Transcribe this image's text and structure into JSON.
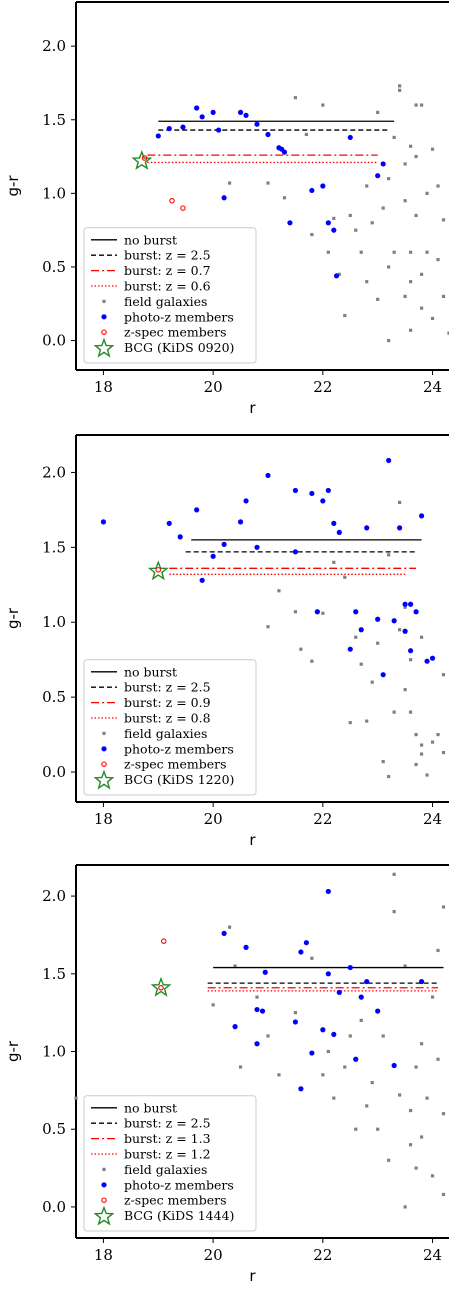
{
  "chart_data": [
    {
      "type": "scatter",
      "xlabel": "r",
      "ylabel": "g-r",
      "xlim": [
        17.5,
        24.3
      ],
      "ylim": [
        -0.2,
        2.3
      ],
      "xticks": [
        "18",
        "20",
        "22",
        "24"
      ],
      "yticks": [
        "0.0",
        "0.5",
        "1.0",
        "1.5",
        "2.0"
      ],
      "legend_position": "lower-left",
      "legend": {
        "no_burst": "no burst",
        "burst_a": "burst: z = 2.5",
        "burst_b": "burst: z = 0.7",
        "burst_c": "burst: z = 0.6",
        "field": "field galaxies",
        "photoz": "photo-z members",
        "zspec": "z-spec members",
        "bcg": "BCG (KiDS 0920)"
      },
      "lines": [
        {
          "name": "no burst",
          "color": "#000000",
          "style": "solid",
          "x": [
            19.0,
            23.3
          ],
          "y": 1.49
        },
        {
          "name": "burst: z = 2.5",
          "color": "#000000",
          "style": "dashed",
          "x": [
            19.0,
            23.2
          ],
          "y": 1.43
        },
        {
          "name": "burst: z = 0.7",
          "color": "#ff0000",
          "style": "dashdot",
          "x": [
            18.8,
            23.0
          ],
          "y": 1.26
        },
        {
          "name": "burst: z = 0.6",
          "color": "#ff0000",
          "style": "dotted",
          "x": [
            18.8,
            23.0
          ],
          "y": 1.21
        }
      ],
      "bcg": {
        "x": 18.7,
        "y": 1.22
      },
      "zspec": [
        [
          18.75,
          1.24
        ],
        [
          19.25,
          0.95
        ],
        [
          19.45,
          0.9
        ]
      ],
      "photoz": [
        [
          19.0,
          1.39
        ],
        [
          19.2,
          1.44
        ],
        [
          19.45,
          1.45
        ],
        [
          19.7,
          1.58
        ],
        [
          19.8,
          1.52
        ],
        [
          20.0,
          1.55
        ],
        [
          20.1,
          1.43
        ],
        [
          20.2,
          0.97
        ],
        [
          20.5,
          1.55
        ],
        [
          20.6,
          1.53
        ],
        [
          20.8,
          1.47
        ],
        [
          21.0,
          1.4
        ],
        [
          21.2,
          1.31
        ],
        [
          21.25,
          1.3
        ],
        [
          21.3,
          1.28
        ],
        [
          21.4,
          0.8
        ],
        [
          21.8,
          1.02
        ],
        [
          22.0,
          1.05
        ],
        [
          22.1,
          0.8
        ],
        [
          22.2,
          0.75
        ],
        [
          22.25,
          0.44
        ],
        [
          22.5,
          1.38
        ],
        [
          23.0,
          1.12
        ],
        [
          23.1,
          1.2
        ]
      ],
      "field": [
        [
          20.3,
          1.07
        ],
        [
          21.0,
          1.07
        ],
        [
          21.3,
          0.97
        ],
        [
          21.5,
          1.65
        ],
        [
          21.7,
          1.4
        ],
        [
          21.8,
          0.72
        ],
        [
          22.0,
          1.6
        ],
        [
          22.1,
          0.6
        ],
        [
          22.2,
          0.83
        ],
        [
          22.3,
          0.45
        ],
        [
          22.4,
          0.17
        ],
        [
          22.5,
          0.85
        ],
        [
          22.6,
          0.75
        ],
        [
          22.7,
          0.6
        ],
        [
          22.8,
          1.05
        ],
        [
          22.8,
          0.4
        ],
        [
          22.9,
          0.8
        ],
        [
          23.0,
          0.28
        ],
        [
          23.0,
          1.55
        ],
        [
          23.1,
          0.9
        ],
        [
          23.2,
          1.1
        ],
        [
          23.2,
          0.5
        ],
        [
          23.2,
          0.0
        ],
        [
          23.3,
          0.6
        ],
        [
          23.3,
          1.38
        ],
        [
          23.4,
          1.7
        ],
        [
          23.4,
          1.73
        ],
        [
          23.5,
          0.3
        ],
        [
          23.5,
          0.95
        ],
        [
          23.5,
          1.2
        ],
        [
          23.6,
          0.6
        ],
        [
          23.6,
          0.4
        ],
        [
          23.6,
          1.32
        ],
        [
          23.6,
          0.07
        ],
        [
          23.7,
          1.6
        ],
        [
          23.7,
          1.25
        ],
        [
          23.7,
          0.85
        ],
        [
          23.8,
          1.6
        ],
        [
          23.8,
          0.22
        ],
        [
          23.8,
          0.45
        ],
        [
          23.9,
          1.0
        ],
        [
          23.9,
          0.6
        ],
        [
          24.0,
          1.3
        ],
        [
          24.0,
          0.15
        ],
        [
          24.1,
          1.05
        ],
        [
          24.1,
          0.55
        ],
        [
          24.2,
          0.82
        ],
        [
          24.2,
          0.3
        ],
        [
          24.3,
          0.05
        ]
      ]
    },
    {
      "type": "scatter",
      "xlabel": "r",
      "ylabel": "g-r",
      "xlim": [
        17.5,
        24.3
      ],
      "ylim": [
        -0.2,
        2.25
      ],
      "xticks": [
        "18",
        "20",
        "22",
        "24"
      ],
      "yticks": [
        "0.0",
        "0.5",
        "1.0",
        "1.5",
        "2.0"
      ],
      "legend_position": "lower-left",
      "legend": {
        "no_burst": "no burst",
        "burst_a": "burst: z = 2.5",
        "burst_b": "burst: z = 0.9",
        "burst_c": "burst: z = 0.8",
        "field": "field galaxies",
        "photoz": "photo-z members",
        "zspec": "z-spec members",
        "bcg": "BCG (KiDS 1220)"
      },
      "lines": [
        {
          "name": "no burst",
          "color": "#000000",
          "style": "solid",
          "x": [
            19.6,
            23.8
          ],
          "y": 1.55
        },
        {
          "name": "burst: z = 2.5",
          "color": "#000000",
          "style": "dashed",
          "x": [
            19.5,
            23.7
          ],
          "y": 1.47
        },
        {
          "name": "burst: z = 0.9",
          "color": "#ff0000",
          "style": "dashdot",
          "x": [
            19.2,
            23.7
          ],
          "y": 1.36
        },
        {
          "name": "burst: z = 0.8",
          "color": "#ff0000",
          "style": "dotted",
          "x": [
            19.2,
            23.5
          ],
          "y": 1.32
        }
      ],
      "bcg": {
        "x": 19.0,
        "y": 1.34
      },
      "zspec": [
        [
          19.0,
          1.35
        ]
      ],
      "photoz": [
        [
          18.0,
          1.67
        ],
        [
          19.2,
          1.66
        ],
        [
          19.4,
          1.57
        ],
        [
          19.7,
          1.75
        ],
        [
          19.8,
          1.28
        ],
        [
          20.0,
          1.44
        ],
        [
          20.2,
          1.52
        ],
        [
          20.5,
          1.67
        ],
        [
          20.6,
          1.81
        ],
        [
          20.8,
          1.5
        ],
        [
          21.0,
          1.98
        ],
        [
          21.5,
          1.47
        ],
        [
          21.5,
          1.88
        ],
        [
          21.8,
          1.86
        ],
        [
          21.9,
          1.07
        ],
        [
          22.0,
          1.81
        ],
        [
          22.1,
          1.88
        ],
        [
          22.2,
          1.66
        ],
        [
          22.3,
          1.6
        ],
        [
          22.5,
          0.82
        ],
        [
          22.6,
          1.07
        ],
        [
          22.7,
          0.95
        ],
        [
          22.8,
          1.63
        ],
        [
          23.0,
          1.02
        ],
        [
          23.1,
          0.65
        ],
        [
          23.2,
          2.08
        ],
        [
          23.3,
          1.01
        ],
        [
          23.4,
          1.63
        ],
        [
          23.5,
          0.94
        ],
        [
          23.6,
          0.81
        ],
        [
          23.7,
          1.07
        ],
        [
          23.8,
          1.71
        ],
        [
          23.9,
          0.74
        ],
        [
          24.0,
          0.76
        ],
        [
          23.5,
          1.12
        ],
        [
          23.6,
          1.12
        ]
      ],
      "field": [
        [
          21.0,
          0.97
        ],
        [
          21.2,
          1.21
        ],
        [
          21.5,
          1.07
        ],
        [
          21.6,
          0.82
        ],
        [
          21.8,
          0.74
        ],
        [
          22.0,
          1.06
        ],
        [
          22.2,
          1.4
        ],
        [
          22.4,
          1.3
        ],
        [
          22.5,
          0.33
        ],
        [
          22.6,
          0.9
        ],
        [
          22.7,
          0.72
        ],
        [
          22.8,
          0.34
        ],
        [
          22.9,
          0.6
        ],
        [
          23.0,
          0.86
        ],
        [
          23.1,
          0.07
        ],
        [
          23.2,
          -0.03
        ],
        [
          23.2,
          1.45
        ],
        [
          23.3,
          0.4
        ],
        [
          23.4,
          0.95
        ],
        [
          23.4,
          1.8
        ],
        [
          23.5,
          0.55
        ],
        [
          23.5,
          1.1
        ],
        [
          23.6,
          0.4
        ],
        [
          23.6,
          0.75
        ],
        [
          23.7,
          0.25
        ],
        [
          23.7,
          0.05
        ],
        [
          23.8,
          0.12
        ],
        [
          23.8,
          0.18
        ],
        [
          23.8,
          0.9
        ],
        [
          23.9,
          -0.02
        ],
        [
          24.0,
          0.2
        ],
        [
          24.1,
          0.25
        ],
        [
          24.2,
          0.65
        ],
        [
          24.2,
          0.13
        ]
      ]
    },
    {
      "type": "scatter",
      "xlabel": "r",
      "ylabel": "g-r",
      "xlim": [
        17.5,
        24.3
      ],
      "ylim": [
        -0.2,
        2.2
      ],
      "xticks": [
        "18",
        "20",
        "22",
        "24"
      ],
      "yticks": [
        "0.0",
        "0.5",
        "1.0",
        "1.5",
        "2.0"
      ],
      "legend_position": "lower-left",
      "legend": {
        "no_burst": "no burst",
        "burst_a": "burst: z = 2.5",
        "burst_b": "burst: z = 1.3",
        "burst_c": "burst: z = 1.2",
        "field": "field galaxies",
        "photoz": "photo-z members",
        "zspec": "z-spec members",
        "bcg": "BCG (KiDS 1444)"
      },
      "lines": [
        {
          "name": "no burst",
          "color": "#000000",
          "style": "solid",
          "x": [
            20.0,
            24.2
          ],
          "y": 1.54
        },
        {
          "name": "burst: z = 2.5",
          "color": "#000000",
          "style": "dashed",
          "x": [
            19.9,
            24.1
          ],
          "y": 1.44
        },
        {
          "name": "burst: z = 1.3",
          "color": "#ff0000",
          "style": "dashdot",
          "x": [
            19.9,
            24.1
          ],
          "y": 1.41
        },
        {
          "name": "burst: z = 1.2",
          "color": "#ff0000",
          "style": "dotted",
          "x": [
            19.9,
            24.1
          ],
          "y": 1.39
        }
      ],
      "bcg": {
        "x": 19.05,
        "y": 1.41
      },
      "zspec": [
        [
          19.1,
          1.71
        ],
        [
          19.05,
          1.41
        ]
      ],
      "photoz": [
        [
          20.2,
          1.76
        ],
        [
          20.4,
          1.16
        ],
        [
          20.6,
          1.67
        ],
        [
          20.8,
          1.27
        ],
        [
          20.8,
          1.05
        ],
        [
          20.9,
          1.26
        ],
        [
          20.95,
          1.51
        ],
        [
          21.5,
          1.19
        ],
        [
          21.6,
          1.64
        ],
        [
          21.6,
          0.76
        ],
        [
          21.7,
          1.7
        ],
        [
          21.8,
          0.99
        ],
        [
          22.0,
          1.14
        ],
        [
          22.1,
          2.03
        ],
        [
          22.1,
          1.5
        ],
        [
          22.2,
          1.11
        ],
        [
          22.3,
          1.38
        ],
        [
          22.5,
          1.54
        ],
        [
          22.6,
          0.95
        ],
        [
          22.7,
          1.35
        ],
        [
          22.8,
          1.45
        ],
        [
          23.0,
          1.26
        ],
        [
          23.3,
          0.91
        ],
        [
          23.8,
          1.45
        ]
      ],
      "field": [
        [
          20.0,
          1.3
        ],
        [
          20.3,
          1.8
        ],
        [
          20.4,
          1.55
        ],
        [
          20.5,
          0.9
        ],
        [
          20.8,
          1.35
        ],
        [
          21.0,
          1.1
        ],
        [
          21.2,
          0.85
        ],
        [
          21.5,
          1.25
        ],
        [
          21.8,
          1.6
        ],
        [
          22.0,
          0.85
        ],
        [
          22.1,
          1.0
        ],
        [
          22.2,
          0.7
        ],
        [
          22.4,
          0.9
        ],
        [
          22.5,
          1.1
        ],
        [
          22.6,
          0.5
        ],
        [
          22.7,
          1.2
        ],
        [
          22.8,
          0.65
        ],
        [
          22.9,
          0.8
        ],
        [
          23.0,
          0.5
        ],
        [
          23.1,
          1.1
        ],
        [
          23.2,
          0.3
        ],
        [
          23.3,
          1.9
        ],
        [
          23.3,
          2.14
        ],
        [
          23.4,
          0.72
        ],
        [
          23.5,
          1.55
        ],
        [
          23.5,
          0.0
        ],
        [
          23.6,
          0.4
        ],
        [
          23.6,
          0.62
        ],
        [
          23.7,
          0.9
        ],
        [
          23.7,
          0.25
        ],
        [
          23.8,
          1.05
        ],
        [
          23.8,
          0.45
        ],
        [
          23.9,
          0.7
        ],
        [
          24.0,
          1.35
        ],
        [
          24.0,
          0.2
        ],
        [
          24.1,
          0.95
        ],
        [
          24.1,
          1.65
        ],
        [
          24.2,
          0.6
        ],
        [
          24.2,
          1.93
        ],
        [
          24.2,
          0.08
        ],
        [
          17.5,
          0.7
        ]
      ]
    }
  ]
}
